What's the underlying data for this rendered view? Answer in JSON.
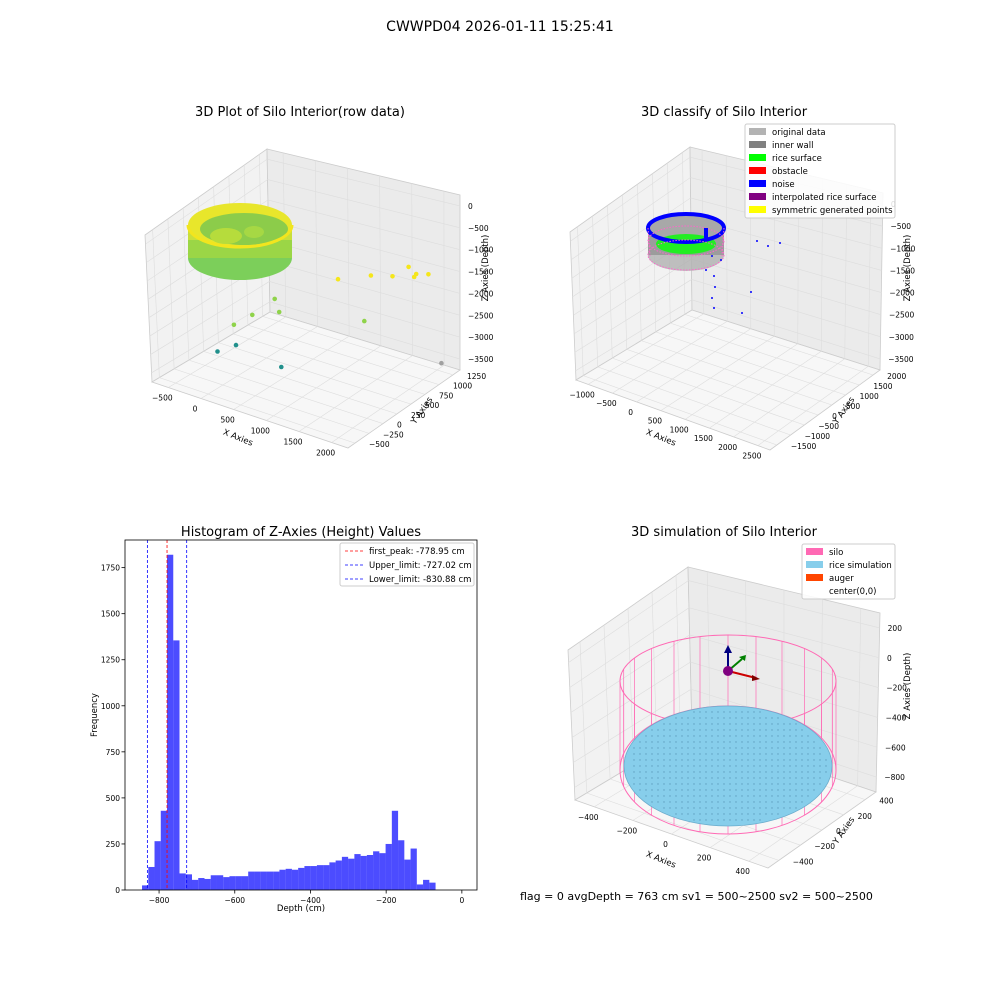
{
  "suptitle": "CWWPD04 2026-01-11 15:25:41",
  "footer": "flag = 0     avgDepth = 763 cm  sv1 = 500~2500  sv2 = 500~2500",
  "chart_data": [
    {
      "id": "raw",
      "type": "scatter",
      "title": "3D Plot of Silo Interior(row data)",
      "xlabel": "X Axies",
      "ylabel": "Y Axies",
      "zlabel": "Z Axies (Depth)",
      "xticks": [
        "−500",
        "0",
        "500",
        "1000",
        "1500",
        "2000"
      ],
      "yticks": [
        "−500",
        "−250",
        "0",
        "250",
        "500",
        "750",
        "1000",
        "1250"
      ],
      "zticks": [
        "0",
        "−500",
        "−1000",
        "−1500",
        "−2000",
        "−2500",
        "−3000",
        "−3500"
      ],
      "colormap": [
        "#f5e61a",
        "#8fd34a",
        "#21908c"
      ],
      "outliers": [
        {
          "x": 1300,
          "y": 400,
          "z": -850
        },
        {
          "x": 1550,
          "y": 700,
          "z": -900
        },
        {
          "x": 1750,
          "y": 850,
          "z": -950
        },
        {
          "x": 1950,
          "y": 1000,
          "z": -1000
        },
        {
          "x": 1900,
          "y": 1100,
          "z": -1050
        },
        {
          "x": 2000,
          "y": 1200,
          "z": -1100
        },
        {
          "x": 1750,
          "y": 1150,
          "z": -1000
        },
        {
          "x": 500,
          "y": 200,
          "z": -1700
        },
        {
          "x": 400,
          "y": -100,
          "z": -1900
        },
        {
          "x": 600,
          "y": 150,
          "z": -1950
        },
        {
          "x": 200,
          "y": -200,
          "z": -2200
        },
        {
          "x": 300,
          "y": -300,
          "z": -2600
        },
        {
          "x": 100,
          "y": -400,
          "z": -2800
        },
        {
          "x": 800,
          "y": -100,
          "z": -3100
        },
        {
          "x": 1500,
          "y": 600,
          "z": -2100
        },
        {
          "x": 2050,
          "y": 1300,
          "z": -3650
        }
      ]
    },
    {
      "id": "classify",
      "type": "scatter",
      "title": "3D classify of Silo Interior",
      "xlabel": "X Axies",
      "ylabel": "Y Axies",
      "zlabel": "Z Axies (Depth)",
      "xticks": [
        "−1000",
        "−500",
        "0",
        "500",
        "1000",
        "1500",
        "2000",
        "2500"
      ],
      "yticks": [
        "−1500",
        "−1000",
        "−500",
        "0",
        "500",
        "1000",
        "1500",
        "2000"
      ],
      "zticks": [
        "0",
        "−500",
        "−1000",
        "−1500",
        "−2000",
        "−2500",
        "−3000",
        "−3500"
      ],
      "legend": [
        {
          "label": "original data",
          "color": "#b3b3b3"
        },
        {
          "label": "inner wall",
          "color": "#808080"
        },
        {
          "label": "rice surface",
          "color": "#00ff00"
        },
        {
          "label": "obstacle",
          "color": "#ff0000"
        },
        {
          "label": "noise",
          "color": "#0000ff"
        },
        {
          "label": "interpolated rice surface",
          "color": "#800080"
        },
        {
          "label": "symmetric generated points",
          "color": "#ffff00"
        }
      ]
    },
    {
      "id": "hist",
      "type": "bar",
      "title": "Histogram of Z-Axies (Height) Values",
      "xlabel": "Depth (cm)",
      "ylabel": "Frequency",
      "xlim": [
        -890,
        40
      ],
      "ylim": [
        0,
        1900
      ],
      "xticks": [
        -800,
        -600,
        -400,
        -200,
        0
      ],
      "xtick_labels": [
        "−800",
        "−600",
        "−400",
        "−200",
        "0"
      ],
      "yticks": [
        0,
        250,
        500,
        750,
        1000,
        1250,
        1500,
        1750
      ],
      "bin_start": -845,
      "bin_width": 16.5,
      "counts": [
        25,
        125,
        265,
        430,
        1820,
        1355,
        90,
        85,
        55,
        65,
        60,
        80,
        80,
        70,
        75,
        75,
        75,
        100,
        100,
        100,
        100,
        100,
        110,
        115,
        110,
        120,
        130,
        130,
        135,
        135,
        150,
        160,
        180,
        170,
        195,
        185,
        190,
        210,
        200,
        250,
        430,
        270,
        165,
        225,
        30,
        55,
        40
      ],
      "color": "#0000ff",
      "lines": [
        {
          "label": "first_peak: -778.95 cm",
          "x": -778.95,
          "color": "#ff0000"
        },
        {
          "label": "Upper_limit: -727.02 cm",
          "x": -727.02,
          "color": "#0000ff"
        },
        {
          "label": "Lower_limit: -830.88 cm",
          "x": -830.88,
          "color": "#0000ff"
        }
      ]
    },
    {
      "id": "sim",
      "type": "scatter",
      "title": "3D simulation of Silo Interior",
      "xlabel": "X Axies",
      "ylabel": "Y Axies",
      "zlabel": "Z Axies (Depth)",
      "xticks": [
        "−400",
        "−200",
        "0",
        "200",
        "400"
      ],
      "yticks": [
        "−400",
        "−200",
        "0",
        "200",
        "400"
      ],
      "zticks": [
        "200",
        "0",
        "−200",
        "−400",
        "−600",
        "−800"
      ],
      "legend": [
        {
          "label": "silo",
          "color": "#ff69b4"
        },
        {
          "label": "rice simulation",
          "color": "#87ceeb"
        },
        {
          "label": "auger",
          "color": "#ff4500"
        },
        {
          "label": "center(0,0)",
          "color": "#ffffff"
        }
      ]
    }
  ]
}
